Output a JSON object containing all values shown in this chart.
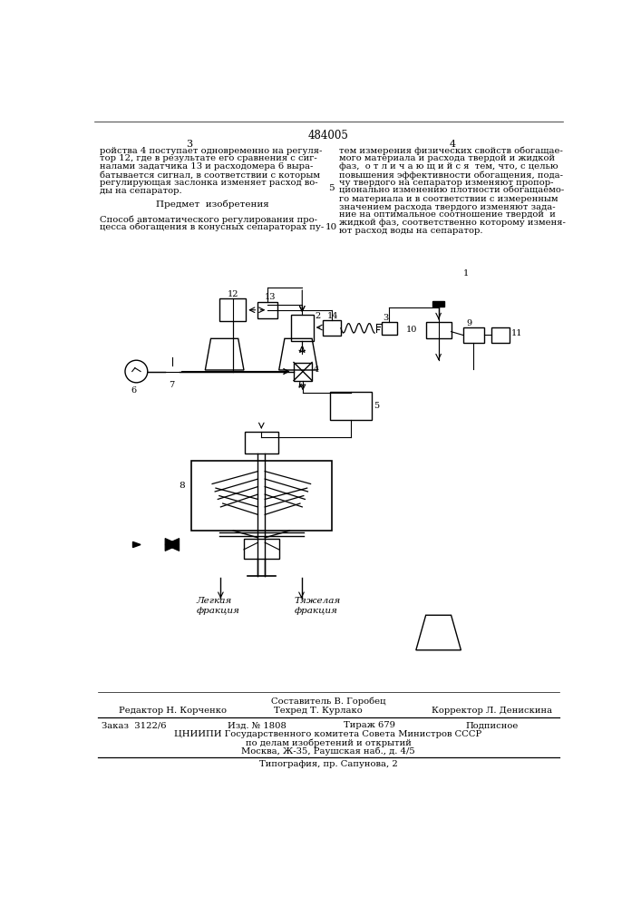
{
  "page_number": "484005",
  "col_left": "3",
  "col_right": "4",
  "text_left_top": "ройства 4 поступает одновременно на регуля-\nтор 12, где в результате его сравнения с сиг-\nналами задатчика 13 и расходомера 6 выра-\nбатывается сигнал, в соответствии с которым\nрегулирующая заслонка изменяет расход во-\nды на сепаратор.",
  "header_left": "Предмет  изобретения",
  "text_left_bottom": "Способ автоматического регулирования про-\nцесса обогащения в конусных сепараторах пу-",
  "line_num_5": "5",
  "line_num_10": "10",
  "text_right_top": "тем измерения физических свойств обогащае-\nмого материала и расхода твердой и жидкой\nфаз,  о т л и ч а ю щ и й с я  тем, что, с целью\nповышения эффективности обогащения, пода-\nчу твердого на сепаратор изменяют пропор-\nционально изменению плотности обогащаемо-\nго материала и в соответствии с измеренным\nзначением расхода твердого изменяют зада-\nние на оптимальное соотношение твердой  и\nжидкой фаз, соответственно которому изменя-\nют расход воды на сепаратор.",
  "footer_composer": "Составитель В. Горобец",
  "footer_editor": "Редактор Н. Корченко",
  "footer_techred": "Техред Т. Курлако",
  "footer_corrector": "Корректор Л. Денискина",
  "footer_order": "Заказ  3122/6",
  "footer_issue": "Изд. № 1808",
  "footer_tirazh": "Тираж 679",
  "footer_podpisnoe": "Подписное",
  "footer_org": "ЦНИИПИ Государственного комитета Совета Министров СССР",
  "footer_org2": "по делам изобретений и открытий",
  "footer_addr": "Москва, Ж-35, Раушская наб., д. 4/5",
  "footer_typo": "Типография, пр. Сапунова, 2",
  "label_legkaya": "Легкая\nфракция",
  "label_tyazhelaya": "Тяжелая\nфракция",
  "bg_color": "#ffffff",
  "text_color": "#000000"
}
